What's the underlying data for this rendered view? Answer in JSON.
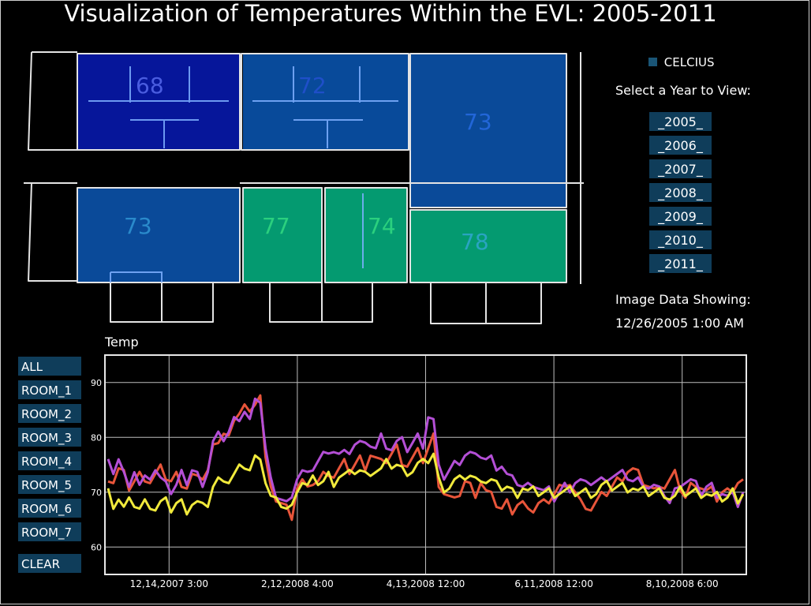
{
  "title": "Visualization of Temperatures Within the EVL: 2005-2011",
  "legend": {
    "label": "CELCIUS",
    "color": "#1a5576"
  },
  "year_prompt": "Select a Year to View:",
  "years": [
    "_2005_",
    "_2006_",
    "_2007_",
    "_2008_",
    "_2009_",
    "_2010_",
    "_2011_"
  ],
  "image_info": {
    "label": "Image Data Showing:",
    "timestamp": "12/26/2005 1:00 AM"
  },
  "rooms": [
    {
      "value": "68",
      "fill": "#06169a",
      "text": "#4a5de0"
    },
    {
      "value": "72",
      "fill": "#084a9a",
      "text": "#1f4fc9"
    },
    {
      "value": "73",
      "fill": "#0a4a99",
      "text": "#2266d8"
    },
    {
      "value": "73",
      "fill": "#0a4a99",
      "text": "#2a8acb"
    },
    {
      "value": "77",
      "fill": "#049a70",
      "text": "#2bd07e"
    },
    {
      "value": "74",
      "fill": "#049a70",
      "text": "#2bd07e"
    },
    {
      "value": "78",
      "fill": "#049a70",
      "text": "#2aa4c2"
    }
  ],
  "room_buttons": [
    "ALL",
    "ROOM_1",
    "ROOM_2",
    "ROOM_3",
    "ROOM_4",
    "ROOM_5",
    "ROOM_6",
    "ROOM_7"
  ],
  "clear_button": "CLEAR",
  "chart_data": {
    "type": "line",
    "ylabel": "Temp",
    "ylim": [
      55,
      95
    ],
    "yticks": [
      60,
      70,
      80,
      90
    ],
    "xtick_labels": [
      "12,14,2007 3:00",
      "2,12,2008 4:00",
      "4,13,2008 12:00",
      "6,11,2008 12:00",
      "8,10,2008 6:00"
    ],
    "grid": true,
    "series": [
      {
        "color": "#e8553a",
        "values": [
          73,
          72,
          74,
          73,
          71,
          72,
          73,
          73,
          72,
          73,
          74,
          73,
          72,
          73,
          72,
          71,
          73,
          72,
          73,
          74,
          78,
          80,
          81,
          80,
          82,
          85,
          86,
          84,
          87,
          88,
          76,
          70,
          69,
          68,
          67,
          66,
          71,
          72,
          70,
          72,
          72,
          73,
          74,
          73,
          74,
          75,
          74,
          75,
          76,
          75,
          77,
          76,
          75,
          76,
          77,
          78,
          76,
          75,
          76,
          77,
          76,
          78,
          80,
          72,
          70,
          69,
          68,
          70,
          72,
          71,
          70,
          72,
          70,
          69,
          68,
          67,
          68,
          67,
          68,
          68,
          66,
          67,
          68,
          68,
          69,
          70,
          71,
          70,
          72,
          70,
          68,
          68,
          67,
          68,
          69,
          70,
          71,
          72,
          73,
          74,
          74,
          73,
          72,
          71,
          70,
          72,
          71,
          72,
          73,
          71,
          69,
          71,
          72,
          71,
          70,
          70,
          69,
          70,
          70,
          71,
          72,
          72
        ]
      },
      {
        "color": "#b44fd6",
        "values": [
          75,
          74,
          76,
          73,
          72,
          74,
          71,
          72,
          73,
          74,
          72,
          73,
          70,
          71,
          73,
          72,
          74,
          73,
          72,
          74,
          79,
          80,
          80,
          81,
          83,
          84,
          85,
          83,
          86,
          87,
          78,
          72,
          70,
          69,
          68,
          68,
          73,
          74,
          73,
          75,
          76,
          77,
          76,
          78,
          77,
          77,
          78,
          79,
          79,
          78,
          79,
          78,
          80,
          79,
          78,
          79,
          79,
          78,
          79,
          80,
          79,
          84,
          83,
          74,
          73,
          74,
          75,
          76,
          77,
          77,
          76,
          77,
          76,
          76,
          75,
          75,
          73,
          72,
          72,
          71,
          71,
          72,
          71,
          70,
          70,
          69,
          70,
          71,
          71,
          72,
          72,
          71,
          72,
          72,
          72,
          73,
          73,
          73,
          73,
          73,
          72,
          72,
          72,
          71,
          71,
          70,
          70,
          68,
          70,
          72,
          72,
          72,
          71,
          70,
          71,
          71,
          70,
          70,
          69,
          69,
          68,
          70
        ]
      },
      {
        "color": "#f1ea3c",
        "values": [
          70,
          68,
          69,
          67,
          68,
          68,
          67,
          68,
          68,
          67,
          68,
          68,
          67,
          68,
          68,
          67,
          68,
          68,
          67,
          68,
          71,
          72,
          73,
          72,
          73,
          74,
          75,
          74,
          76,
          77,
          72,
          69,
          68,
          68,
          67,
          67,
          71,
          72,
          71,
          72,
          72,
          72,
          73,
          72,
          73,
          73,
          73,
          74,
          74,
          73,
          74,
          74,
          74,
          75,
          75,
          75,
          74,
          74,
          74,
          75,
          75,
          76,
          77,
          72,
          71,
          71,
          72,
          72,
          73,
          73,
          72,
          73,
          72,
          72,
          71,
          71,
          71,
          70,
          70,
          71,
          70,
          70,
          70,
          70,
          70,
          70,
          70,
          70,
          70,
          70,
          70,
          70,
          70,
          70,
          71,
          71,
          71,
          71,
          71,
          71,
          71,
          70,
          70,
          70,
          70,
          70,
          70,
          69,
          69,
          70,
          70,
          70,
          70,
          70,
          70,
          69,
          69,
          69,
          69,
          70,
          69,
          70
        ]
      }
    ]
  }
}
